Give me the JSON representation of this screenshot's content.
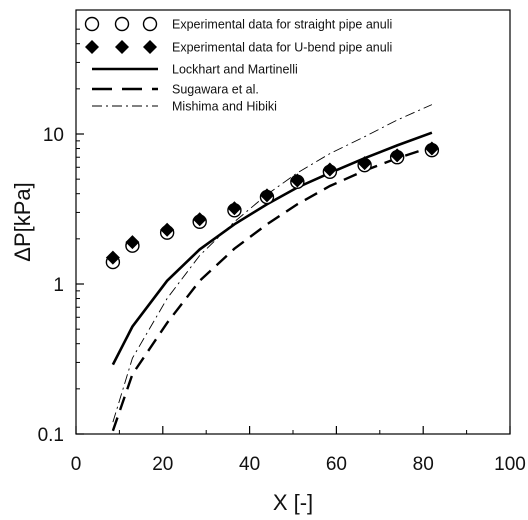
{
  "chart_data": {
    "type": "scatter",
    "xlabel": "X [-]",
    "ylabel": "ΔP[kPa]",
    "xlim": [
      0,
      100
    ],
    "ylim": [
      0.1,
      50
    ],
    "yscale": "log",
    "xticks": [
      0,
      20,
      40,
      60,
      80,
      100
    ],
    "yticks": [
      {
        "value": 0.1,
        "label": "0.1"
      },
      {
        "value": 1,
        "label": "1"
      },
      {
        "value": 10,
        "label": "10"
      }
    ],
    "grid": false,
    "legend_position": "top-left",
    "series": [
      {
        "name": "Experimental data for straight pipe anuli",
        "kind": "markers",
        "marker": "open-circle",
        "color": "#000000",
        "x": [
          8.5,
          13,
          21,
          28.5,
          36.5,
          44,
          51,
          58.5,
          66.5,
          74,
          82
        ],
        "y": [
          1.4,
          1.8,
          2.2,
          2.6,
          3.1,
          3.8,
          4.8,
          5.6,
          6.2,
          7.0,
          7.8
        ]
      },
      {
        "name": "Experimental data for U-bend pipe anuli",
        "kind": "markers",
        "marker": "filled-diamond",
        "color": "#000000",
        "x": [
          8.5,
          13,
          21,
          28.5,
          36.5,
          44,
          51,
          58.5,
          66.5,
          74,
          82
        ],
        "y": [
          1.5,
          1.9,
          2.3,
          2.7,
          3.2,
          3.9,
          4.9,
          5.8,
          6.4,
          7.2,
          8.0
        ]
      },
      {
        "name": "Lockhart and Martinelli",
        "kind": "line",
        "style": "solid",
        "color": "#000000",
        "x": [
          8.5,
          13,
          21,
          28.5,
          36.5,
          44,
          51,
          58.5,
          66.5,
          74,
          82
        ],
        "y": [
          0.29,
          0.52,
          1.05,
          1.7,
          2.5,
          3.4,
          4.4,
          5.5,
          6.9,
          8.4,
          10.2
        ]
      },
      {
        "name": "Sugawara et al.",
        "kind": "line",
        "style": "dashed",
        "color": "#000000",
        "x": [
          8.5,
          13,
          21,
          28.5,
          36.5,
          44,
          51,
          58.5,
          66.5,
          74,
          82
        ],
        "y": [
          0.105,
          0.25,
          0.55,
          1.05,
          1.72,
          2.5,
          3.4,
          4.5,
          5.7,
          6.9,
          8.2
        ]
      },
      {
        "name": "Mishima and Hibiki",
        "kind": "line",
        "style": "dash-dot",
        "color": "#000000",
        "x": [
          8.5,
          13,
          21,
          28.5,
          36.5,
          44,
          51,
          58.5,
          66.5,
          74,
          82
        ],
        "y": [
          0.12,
          0.32,
          0.8,
          1.55,
          2.6,
          3.95,
          5.5,
          7.4,
          9.6,
          12.4,
          15.7
        ]
      }
    ]
  }
}
